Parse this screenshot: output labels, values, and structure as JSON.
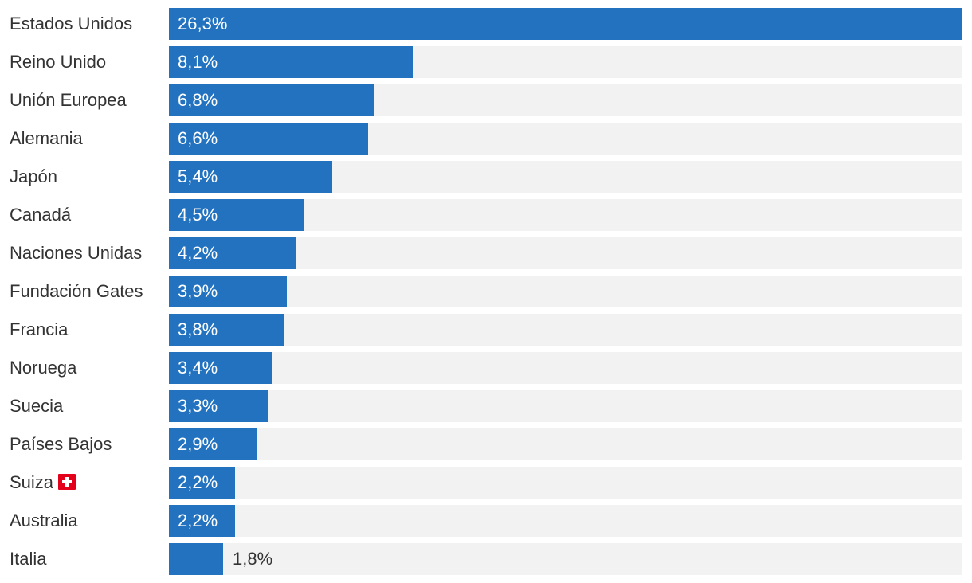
{
  "chart_data": {
    "type": "bar",
    "orientation": "horizontal",
    "title": "",
    "xlabel": "",
    "ylabel": "",
    "xlim": [
      0,
      26.3
    ],
    "grid": false,
    "bar_color": "#2272bf",
    "track_color": "#f2f2f2",
    "categories": [
      "Estados Unidos",
      "Reino Unido",
      "Unión Europea",
      "Alemania",
      "Japón",
      "Canadá",
      "Naciones Unidas",
      "Fundación Gates",
      "Francia",
      "Noruega",
      "Suecia",
      "Países Bajos",
      "Suiza",
      "Australia",
      "Italia"
    ],
    "values": [
      26.3,
      8.1,
      6.8,
      6.6,
      5.4,
      4.5,
      4.2,
      3.9,
      3.8,
      3.4,
      3.3,
      2.9,
      2.2,
      2.2,
      1.8
    ],
    "value_labels": [
      "26,3%",
      "8,1%",
      "6,8%",
      "6,6%",
      "5,4%",
      "4,5%",
      "4,2%",
      "3,9%",
      "3,8%",
      "3,4%",
      "3,3%",
      "2,9%",
      "2,2%",
      "2,2%",
      "1,8%"
    ],
    "category_icons": [
      "",
      "",
      "",
      "",
      "",
      "",
      "",
      "",
      "",
      "",
      "",
      "",
      "swiss-flag-icon",
      "",
      ""
    ]
  }
}
